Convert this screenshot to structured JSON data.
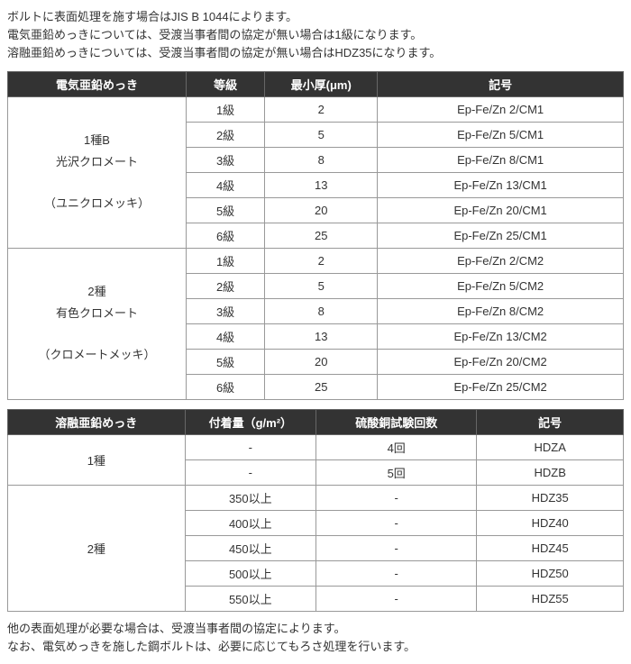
{
  "intro": {
    "line1": "ボルトに表面処理を施す場合はJIS B 1044によります。",
    "line2": "電気亜鉛めっきについては、受渡当事者間の協定が無い場合は1級になります。",
    "line3": "溶融亜鉛めっきについては、受渡当事者間の協定が無い場合はHDZ35になります。"
  },
  "table1": {
    "headers": {
      "h1": "電気亜鉛めっき",
      "h2": "等級",
      "h3": "最小厚(μm)",
      "h4": "記号"
    },
    "group1": {
      "label_line1": "1種B",
      "label_line2": "光沢クロメート",
      "label_line3": "（ユニクロメッキ）",
      "rows": [
        {
          "grade": "1級",
          "thickness": "2",
          "code": "Ep-Fe/Zn 2/CM1"
        },
        {
          "grade": "2級",
          "thickness": "5",
          "code": "Ep-Fe/Zn 5/CM1"
        },
        {
          "grade": "3級",
          "thickness": "8",
          "code": "Ep-Fe/Zn 8/CM1"
        },
        {
          "grade": "4級",
          "thickness": "13",
          "code": "Ep-Fe/Zn 13/CM1"
        },
        {
          "grade": "5級",
          "thickness": "20",
          "code": "Ep-Fe/Zn 20/CM1"
        },
        {
          "grade": "6級",
          "thickness": "25",
          "code": "Ep-Fe/Zn 25/CM1"
        }
      ]
    },
    "group2": {
      "label_line1": "2種",
      "label_line2": "有色クロメート",
      "label_line3": "（クロメートメッキ）",
      "rows": [
        {
          "grade": "1級",
          "thickness": "2",
          "code": "Ep-Fe/Zn 2/CM2"
        },
        {
          "grade": "2級",
          "thickness": "5",
          "code": "Ep-Fe/Zn 5/CM2"
        },
        {
          "grade": "3級",
          "thickness": "8",
          "code": "Ep-Fe/Zn 8/CM2"
        },
        {
          "grade": "4級",
          "thickness": "13",
          "code": "Ep-Fe/Zn 13/CM2"
        },
        {
          "grade": "5級",
          "thickness": "20",
          "code": "Ep-Fe/Zn 20/CM2"
        },
        {
          "grade": "6級",
          "thickness": "25",
          "code": "Ep-Fe/Zn 25/CM2"
        }
      ]
    }
  },
  "table2": {
    "headers": {
      "h1": "溶融亜鉛めっき",
      "h2": "付着量（g/m²）",
      "h3": "硫酸銅試験回数",
      "h4": "記号"
    },
    "group1": {
      "label": "1種",
      "rows": [
        {
          "adhesion": "-",
          "test": "4回",
          "code": "HDZA"
        },
        {
          "adhesion": "-",
          "test": "5回",
          "code": "HDZB"
        }
      ]
    },
    "group2": {
      "label": "2種",
      "rows": [
        {
          "adhesion": "350以上",
          "test": "-",
          "code": "HDZ35"
        },
        {
          "adhesion": "400以上",
          "test": "-",
          "code": "HDZ40"
        },
        {
          "adhesion": "450以上",
          "test": "-",
          "code": "HDZ45"
        },
        {
          "adhesion": "500以上",
          "test": "-",
          "code": "HDZ50"
        },
        {
          "adhesion": "550以上",
          "test": "-",
          "code": "HDZ55"
        }
      ]
    }
  },
  "outro": {
    "line1": "他の表面処理が必要な場合は、受渡当事者間の協定によります。",
    "line2": "なお、電気めっきを施した鋼ボルトは、必要に応じてもろさ処理を行います。"
  }
}
